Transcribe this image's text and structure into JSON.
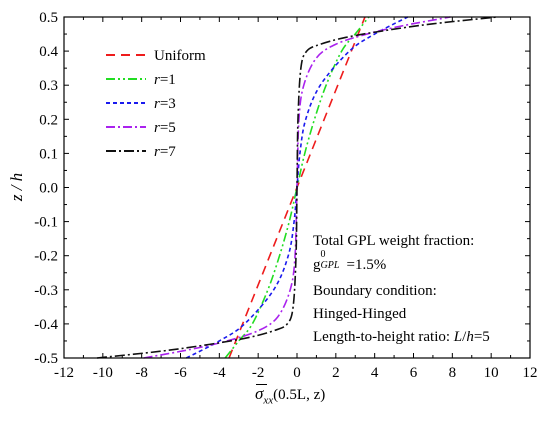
{
  "chart_data": {
    "type": "line",
    "xlabel": {
      "symbol": "σ",
      "sub": "xx",
      "args": "(0.5L, z)"
    },
    "ylabel": "z / h",
    "xlim": [
      -12,
      12
    ],
    "ylim": [
      -0.5,
      0.5
    ],
    "x_ticks": [
      "-12",
      "-10",
      "-8",
      "-6",
      "-4",
      "-2",
      "0",
      "2",
      "4",
      "6",
      "8",
      "10",
      "12"
    ],
    "y_ticks": [
      "-0.5",
      "-0.4",
      "-0.3",
      "-0.2",
      "-0.1",
      "0.0",
      "0.1",
      "0.2",
      "0.3",
      "0.4",
      "0.5"
    ],
    "legend_position": "top-left",
    "series": [
      {
        "name": "Uniform",
        "label_prefix": "",
        "label_value": "Uniform",
        "color": "#ee1c1c",
        "dash": "9,6",
        "points": [
          [
            -3.5,
            -0.5
          ],
          [
            -2.8,
            -0.4
          ],
          [
            -2.1,
            -0.3
          ],
          [
            -1.4,
            -0.2
          ],
          [
            -0.7,
            -0.1
          ],
          [
            0,
            0
          ],
          [
            0.7,
            0.1
          ],
          [
            1.4,
            0.2
          ],
          [
            2.1,
            0.3
          ],
          [
            2.8,
            0.4
          ],
          [
            3.5,
            0.5
          ]
        ]
      },
      {
        "name": "r=1",
        "label_prefix": "r",
        "label_value": "=1",
        "color": "#22dd22",
        "dash": "9,3,2,3,2,3",
        "points": [
          [
            -3.7,
            -0.5
          ],
          [
            -3.0,
            -0.45
          ],
          [
            -2.3,
            -0.4
          ],
          [
            -1.5,
            -0.3
          ],
          [
            -0.9,
            -0.2
          ],
          [
            -0.4,
            -0.1
          ],
          [
            0,
            0
          ],
          [
            0.4,
            0.1
          ],
          [
            0.9,
            0.2
          ],
          [
            1.5,
            0.3
          ],
          [
            2.3,
            0.4
          ],
          [
            3.0,
            0.45
          ],
          [
            3.7,
            0.5
          ]
        ]
      },
      {
        "name": "r=3",
        "label_prefix": "r",
        "label_value": "=3",
        "color": "#1a1aee",
        "dash": "4,3",
        "points": [
          [
            -5.7,
            -0.5
          ],
          [
            -4.0,
            -0.45
          ],
          [
            -2.7,
            -0.4
          ],
          [
            -1.2,
            -0.3
          ],
          [
            -0.45,
            -0.2
          ],
          [
            -0.15,
            -0.1
          ],
          [
            0,
            0
          ],
          [
            0.15,
            0.1
          ],
          [
            0.45,
            0.2
          ],
          [
            1.2,
            0.3
          ],
          [
            2.7,
            0.4
          ],
          [
            4.0,
            0.45
          ],
          [
            5.7,
            0.5
          ]
        ]
      },
      {
        "name": "r=5",
        "label_prefix": "r",
        "label_value": "=5",
        "color": "#aa22ee",
        "dash": "9,3,2,3",
        "points": [
          [
            -7.9,
            -0.5
          ],
          [
            -5.5,
            -0.475
          ],
          [
            -3.6,
            -0.45
          ],
          [
            -2.0,
            -0.42
          ],
          [
            -1.0,
            -0.38
          ],
          [
            -0.35,
            -0.3
          ],
          [
            -0.1,
            -0.2
          ],
          [
            0,
            0
          ],
          [
            0.1,
            0.2
          ],
          [
            0.35,
            0.3
          ],
          [
            1.0,
            0.38
          ],
          [
            2.0,
            0.42
          ],
          [
            3.6,
            0.45
          ],
          [
            5.5,
            0.475
          ],
          [
            7.9,
            0.5
          ]
        ]
      },
      {
        "name": "r=7",
        "label_prefix": "r",
        "label_value": "=7",
        "color": "#111111",
        "dash": "10,3,2,3",
        "points": [
          [
            -10.3,
            -0.5
          ],
          [
            -7.0,
            -0.48
          ],
          [
            -4.5,
            -0.46
          ],
          [
            -2.5,
            -0.44
          ],
          [
            -1.2,
            -0.42
          ],
          [
            -0.5,
            -0.4
          ],
          [
            -0.2,
            -0.35
          ],
          [
            -0.05,
            -0.2
          ],
          [
            0,
            0
          ],
          [
            0.05,
            0.2
          ],
          [
            0.2,
            0.35
          ],
          [
            0.5,
            0.4
          ],
          [
            1.2,
            0.42
          ],
          [
            2.5,
            0.44
          ],
          [
            4.5,
            0.46
          ],
          [
            7.0,
            0.48
          ],
          [
            10.3,
            0.5
          ]
        ]
      }
    ],
    "annotations": {
      "line1": "Total GPL weight fraction:",
      "line2_base": "g",
      "line2_sup": "0",
      "line2_sub": "GPL",
      "line2_rest": "=1.5%",
      "line3": "Boundary condition:",
      "line4": "Hinged-Hinged",
      "line5_prefix": "Length-to-height ratio: ",
      "line5_var1": "L",
      "line5_slash": "/",
      "line5_var2": "h",
      "line5_rest": "=5"
    }
  }
}
